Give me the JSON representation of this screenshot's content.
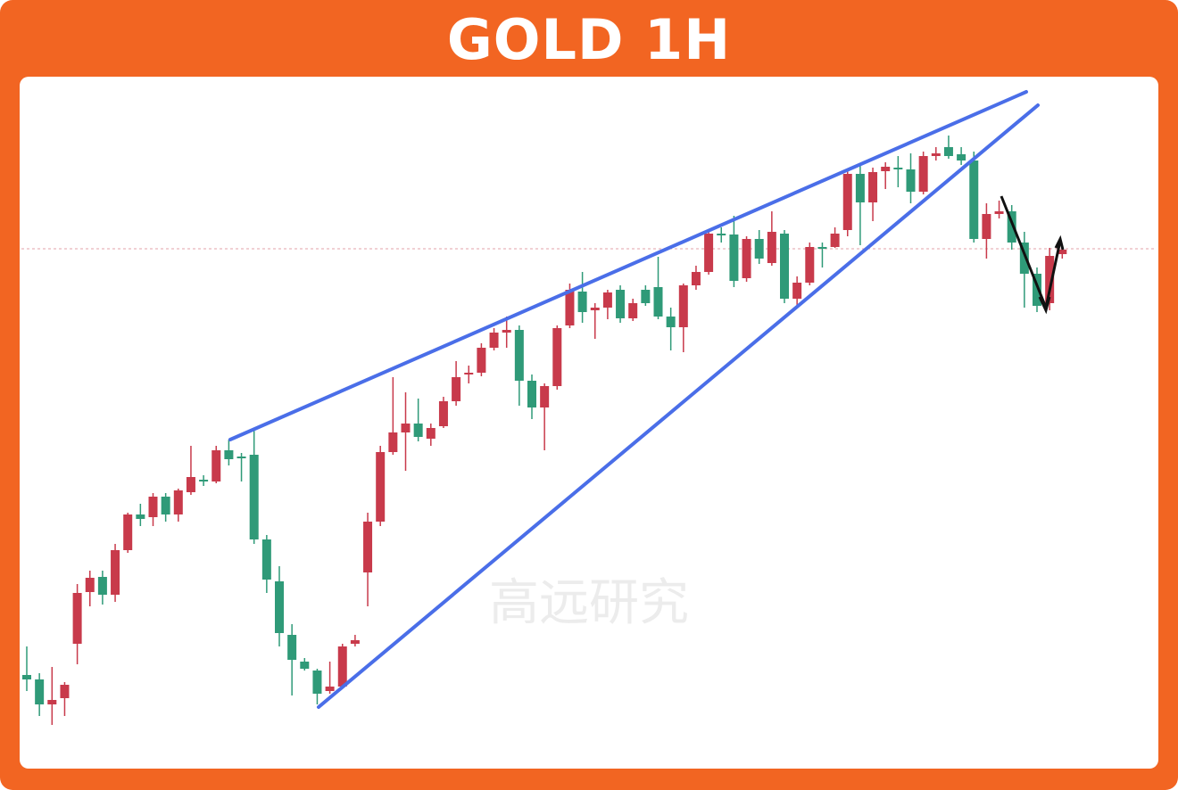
{
  "chart_data": {
    "type": "candlestick",
    "title": "GOLD 1H",
    "watermark": "高远研究",
    "up_color": "#c83a4b",
    "down_color": "#2f9a78",
    "ylim": [
      24,
      800
    ],
    "hline": 607,
    "open": [
      129,
      124,
      96,
      103,
      164,
      222,
      239,
      219,
      269,
      309,
      306,
      329,
      309,
      334,
      348,
      346,
      381,
      374,
      376,
      281,
      234,
      174,
      144,
      134,
      111,
      116,
      164,
      244,
      301,
      379,
      401,
      411,
      394,
      408,
      436,
      466,
      468,
      496,
      513,
      516,
      459,
      429,
      453,
      521,
      559,
      538,
      541,
      561,
      529,
      561,
      564,
      531,
      519,
      566,
      581,
      624,
      623,
      574,
      618,
      591,
      624,
      551,
      569,
      609,
      609,
      628,
      691,
      659,
      694,
      698,
      696,
      671,
      711,
      721,
      713,
      706,
      618,
      646,
      649,
      614,
      579,
      546,
      601
    ],
    "high": [
      161,
      131,
      138,
      121,
      231,
      246,
      246,
      276,
      311,
      321,
      333,
      333,
      338,
      386,
      353,
      386,
      393,
      378,
      403,
      286,
      251,
      186,
      148,
      136,
      144,
      164,
      174,
      311,
      386,
      463,
      446,
      439,
      411,
      441,
      481,
      476,
      501,
      518,
      531,
      521,
      466,
      456,
      521,
      568,
      581,
      546,
      561,
      566,
      551,
      566,
      598,
      541,
      568,
      588,
      628,
      631,
      644,
      621,
      628,
      649,
      628,
      576,
      614,
      614,
      631,
      696,
      701,
      698,
      704,
      711,
      714,
      716,
      721,
      734,
      721,
      716,
      658,
      661,
      656,
      626,
      586,
      608,
      611
    ],
    "low": [
      111,
      83,
      73,
      83,
      141,
      206,
      208,
      211,
      266,
      296,
      296,
      301,
      301,
      331,
      341,
      344,
      364,
      346,
      276,
      221,
      161,
      106,
      134,
      96,
      108,
      114,
      161,
      206,
      296,
      376,
      358,
      391,
      386,
      406,
      431,
      456,
      464,
      493,
      496,
      431,
      416,
      381,
      449,
      518,
      524,
      506,
      528,
      524,
      526,
      543,
      528,
      493,
      491,
      561,
      578,
      614,
      564,
      570,
      590,
      588,
      546,
      544,
      566,
      586,
      608,
      621,
      611,
      638,
      674,
      676,
      658,
      668,
      706,
      708,
      701,
      614,
      596,
      641,
      606,
      541,
      536,
      538,
      596
    ],
    "close": [
      124,
      96,
      101,
      118,
      221,
      238,
      219,
      269,
      309,
      304,
      329,
      309,
      336,
      351,
      346,
      381,
      371,
      373,
      281,
      236,
      176,
      146,
      136,
      108,
      116,
      161,
      168,
      301,
      379,
      401,
      411,
      396,
      406,
      436,
      463,
      468,
      496,
      513,
      516,
      459,
      429,
      453,
      518,
      561,
      536,
      541,
      558,
      529,
      546,
      546,
      531,
      519,
      566,
      581,
      624,
      623,
      571,
      618,
      596,
      626,
      551,
      569,
      609,
      608,
      624,
      691,
      659,
      693,
      699,
      696,
      671,
      711,
      714,
      711,
      706,
      618,
      646,
      649,
      614,
      579,
      543,
      599,
      606
    ]
  }
}
